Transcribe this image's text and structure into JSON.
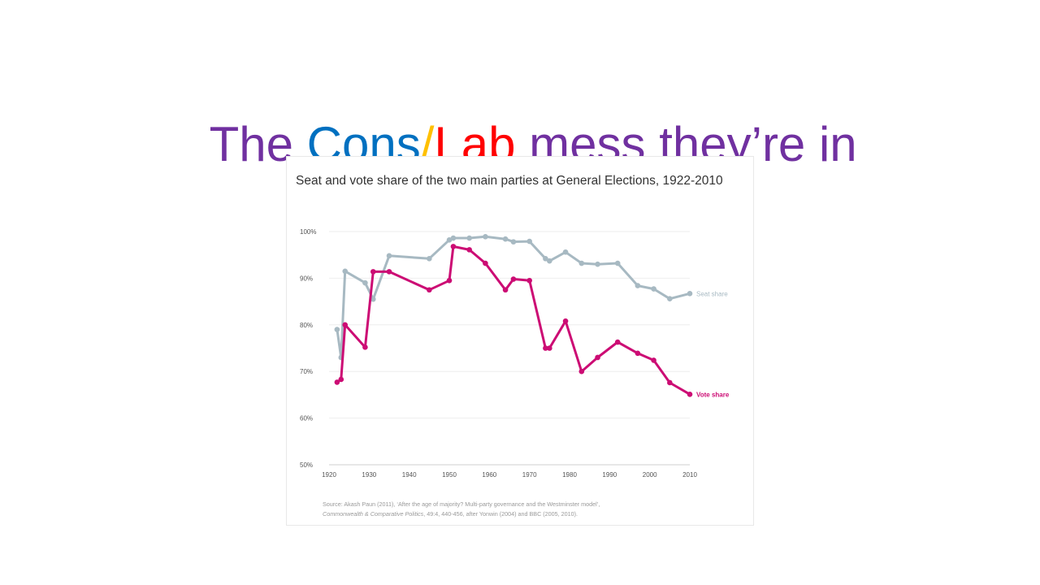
{
  "slide": {
    "title_parts": [
      {
        "text": "The ",
        "color": "#7030a0"
      },
      {
        "text": "Cons",
        "color": "#0070c0"
      },
      {
        "text": "/",
        "color": "#ffc000"
      },
      {
        "text": "Lab",
        "color": "#ff0000"
      },
      {
        "text": " mess they’re in",
        "color": "#7030a0"
      }
    ]
  },
  "chart_data": {
    "type": "line",
    "title": "Seat and vote share of the two main parties at General Elections, 1922-2010",
    "xlabel": "",
    "ylabel": "",
    "xlim": [
      1920,
      2010
    ],
    "ylim": [
      50,
      100
    ],
    "x_ticks": [
      "1920",
      "1930",
      "1940",
      "1950",
      "1960",
      "1970",
      "1980",
      "1990",
      "2000",
      "2010"
    ],
    "y_ticks": [
      "50%",
      "60%",
      "70%",
      "80%",
      "90%",
      "100%"
    ],
    "grid": true,
    "legend": "direct labels at right end of lines",
    "series": [
      {
        "name": "Seat share",
        "color": "#a7b9c2",
        "points": [
          [
            1922,
            79
          ],
          [
            1923,
            73
          ],
          [
            1924,
            91.5
          ],
          [
            1929,
            89
          ],
          [
            1931,
            85.5
          ],
          [
            1935,
            94.8
          ],
          [
            1945,
            94.2
          ],
          [
            1950,
            98.2
          ],
          [
            1951,
            98.6
          ],
          [
            1955,
            98.6
          ],
          [
            1959,
            98.9
          ],
          [
            1964,
            98.4
          ],
          [
            1966,
            97.8
          ],
          [
            1970,
            97.9
          ],
          [
            1974,
            94.2
          ],
          [
            1975,
            93.7
          ],
          [
            1979,
            95.6
          ],
          [
            1983,
            93.2
          ],
          [
            1987,
            93
          ],
          [
            1992,
            93.2
          ],
          [
            1997,
            88.4
          ],
          [
            2001,
            87.7
          ],
          [
            2005,
            85.6
          ],
          [
            2010,
            86.7
          ]
        ]
      },
      {
        "name": "Vote share",
        "color": "#cc0c74",
        "points": [
          [
            1922,
            67.7
          ],
          [
            1923,
            68.3
          ],
          [
            1924,
            80
          ],
          [
            1929,
            75.2
          ],
          [
            1931,
            91.4
          ],
          [
            1935,
            91.4
          ],
          [
            1945,
            87.5
          ],
          [
            1950,
            89.5
          ],
          [
            1951,
            96.8
          ],
          [
            1955,
            96.1
          ],
          [
            1959,
            93.2
          ],
          [
            1964,
            87.5
          ],
          [
            1966,
            89.8
          ],
          [
            1970,
            89.5
          ],
          [
            1974,
            75
          ],
          [
            1975,
            75
          ],
          [
            1979,
            80.8
          ],
          [
            1983,
            70
          ],
          [
            1987,
            73
          ],
          [
            1992,
            76.3
          ],
          [
            1997,
            73.9
          ],
          [
            2001,
            72.4
          ],
          [
            2005,
            67.6
          ],
          [
            2010,
            65.1
          ]
        ]
      }
    ],
    "source_lines": [
      "Source:  Akash Paun (2011), ‘After the age of majority? Multi-party governance and the Westminster model’,",
      "Commonwealth & Comparative Politics, 49:4, 440-456, after Yonwin (2004) and BBC (2005, 2010)."
    ]
  }
}
